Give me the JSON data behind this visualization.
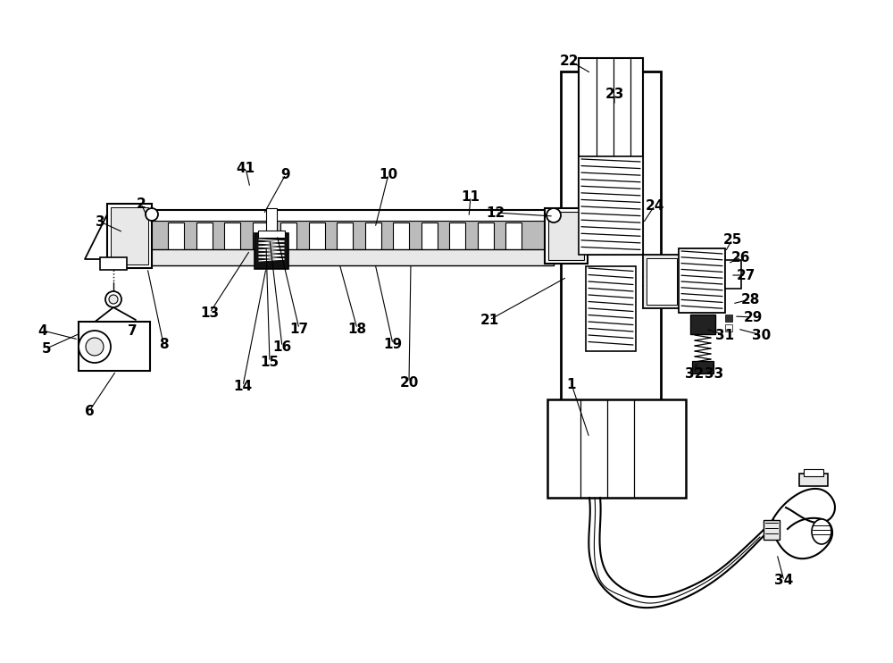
{
  "bg": "#ffffff",
  "lc": "#000000",
  "gc": "#bbbbbb",
  "lgc": "#e8e8e8",
  "figsize": [
    10.0,
    7.42
  ],
  "dpi": 100,
  "labels": [
    [
      "1",
      640,
      430
    ],
    [
      "2",
      158,
      228
    ],
    [
      "3",
      112,
      248
    ],
    [
      "4",
      48,
      370
    ],
    [
      "5",
      52,
      390
    ],
    [
      "6",
      100,
      460
    ],
    [
      "7",
      148,
      370
    ],
    [
      "8",
      183,
      385
    ],
    [
      "9",
      320,
      195
    ],
    [
      "10",
      435,
      195
    ],
    [
      "11",
      527,
      220
    ],
    [
      "12",
      555,
      238
    ],
    [
      "13",
      235,
      350
    ],
    [
      "14",
      272,
      432
    ],
    [
      "15",
      302,
      405
    ],
    [
      "16",
      316,
      388
    ],
    [
      "17",
      335,
      368
    ],
    [
      "18",
      400,
      368
    ],
    [
      "19",
      440,
      385
    ],
    [
      "20",
      458,
      428
    ],
    [
      "21",
      548,
      358
    ],
    [
      "22",
      638,
      68
    ],
    [
      "23",
      688,
      105
    ],
    [
      "24",
      733,
      230
    ],
    [
      "25",
      820,
      268
    ],
    [
      "26",
      830,
      288
    ],
    [
      "27",
      835,
      308
    ],
    [
      "28",
      840,
      335
    ],
    [
      "29",
      843,
      355
    ],
    [
      "30",
      853,
      375
    ],
    [
      "31",
      812,
      375
    ],
    [
      "32",
      778,
      418
    ],
    [
      "33",
      800,
      418
    ],
    [
      "34",
      878,
      650
    ],
    [
      "41",
      275,
      188
    ]
  ]
}
